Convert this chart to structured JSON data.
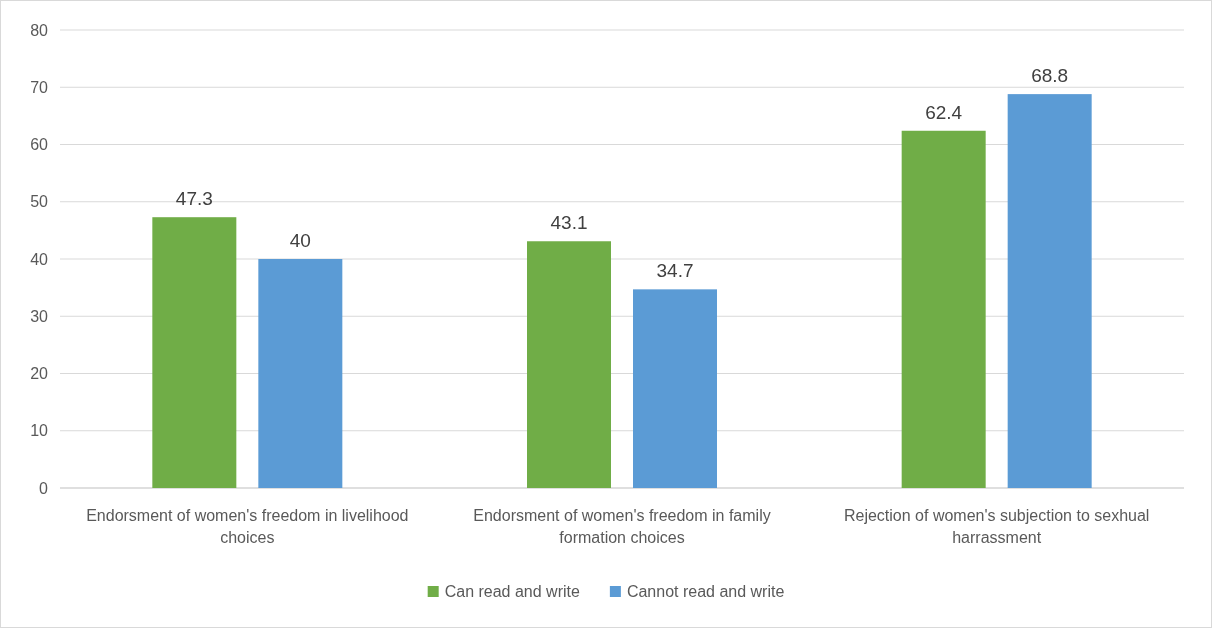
{
  "chart_data": {
    "type": "bar",
    "categories": [
      "Endorsment of women's freedom in livelihood choices",
      "Endorsment of women's freedom in family formation choices",
      "Rejection of women's subjection to sexhual harrassment"
    ],
    "series": [
      {
        "name": "Can read and write",
        "color": "#70ad47",
        "values": [
          47.3,
          43.1,
          62.4
        ]
      },
      {
        "name": "Cannot read and write",
        "color": "#5b9bd5",
        "values": [
          40,
          34.7,
          68.8
        ]
      }
    ],
    "ylim": [
      0,
      80
    ],
    "yticks": [
      0,
      10,
      20,
      30,
      40,
      50,
      60,
      70,
      80
    ],
    "grid": "y",
    "legend": "bottom",
    "data_labels": true
  }
}
